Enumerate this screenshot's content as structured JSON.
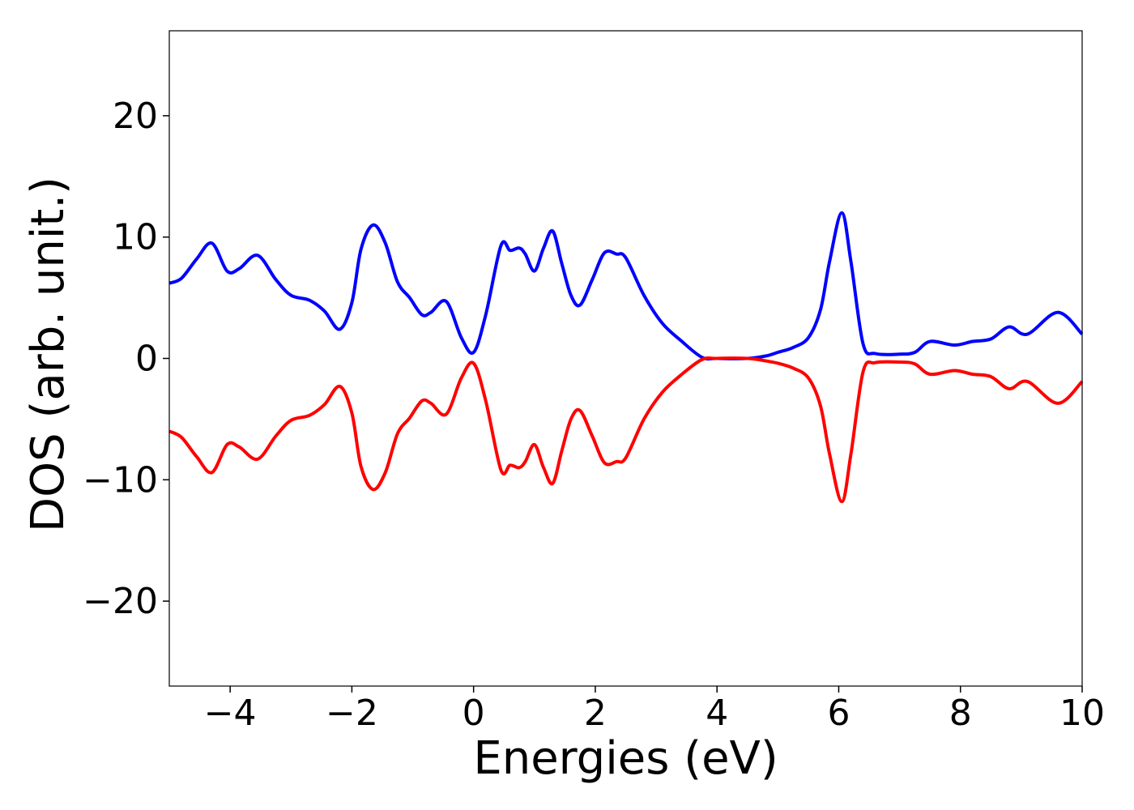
{
  "chart_data": {
    "type": "line",
    "title": "",
    "xlabel": "Energies (eV)",
    "ylabel": "DOS (arb. unit.)",
    "xlim": [
      -5,
      10
    ],
    "ylim": [
      -27,
      27
    ],
    "xticks": [
      -4,
      -2,
      0,
      2,
      4,
      6,
      8,
      10
    ],
    "yticks": [
      -20,
      -10,
      0,
      10,
      20
    ],
    "xtick_labels": [
      "−4",
      "−2",
      "0",
      "2",
      "4",
      "6",
      "8",
      "10"
    ],
    "ytick_labels": [
      "−20",
      "−10",
      "0",
      "10",
      "20"
    ],
    "grid": false,
    "legend": "none",
    "series": [
      {
        "color": "#0000ff",
        "x": [
          -5.0,
          -4.8,
          -4.55,
          -4.3,
          -4.05,
          -3.85,
          -3.55,
          -3.25,
          -3.0,
          -2.7,
          -2.45,
          -2.2,
          -2.0,
          -1.85,
          -1.65,
          -1.45,
          -1.25,
          -1.05,
          -0.85,
          -0.7,
          -0.45,
          -0.2,
          0.0,
          0.2,
          0.45,
          0.6,
          0.75,
          0.85,
          1.0,
          1.15,
          1.3,
          1.45,
          1.6,
          1.75,
          1.95,
          2.15,
          2.35,
          2.5,
          2.8,
          3.1,
          3.4,
          3.75,
          4.0,
          4.5,
          4.8,
          5.0,
          5.25,
          5.5,
          5.7,
          5.85,
          6.05,
          6.2,
          6.4,
          6.6,
          7.0,
          7.25,
          7.5,
          7.9,
          8.2,
          8.5,
          8.8,
          9.1,
          9.6,
          10.0
        ],
        "y": [
          6.2,
          6.6,
          8.2,
          9.5,
          7.2,
          7.4,
          8.5,
          6.5,
          5.2,
          4.8,
          3.9,
          2.4,
          4.6,
          9.0,
          11.0,
          9.5,
          6.3,
          5.0,
          3.6,
          3.8,
          4.7,
          1.7,
          0.5,
          3.6,
          9.3,
          8.9,
          9.1,
          8.6,
          7.2,
          9.1,
          10.5,
          7.8,
          5.2,
          4.4,
          6.5,
          8.7,
          8.6,
          8.3,
          5.2,
          2.9,
          1.5,
          0.1,
          0.0,
          0.0,
          0.2,
          0.5,
          0.9,
          1.7,
          4.0,
          8.0,
          12.0,
          8.0,
          1.2,
          0.4,
          0.35,
          0.5,
          1.4,
          1.1,
          1.4,
          1.6,
          2.6,
          2.0,
          3.8,
          2.0
        ]
      },
      {
        "color": "#ff0000",
        "x": [
          -5.0,
          -4.8,
          -4.55,
          -4.3,
          -4.05,
          -3.85,
          -3.55,
          -3.25,
          -3.0,
          -2.7,
          -2.45,
          -2.2,
          -2.0,
          -1.85,
          -1.65,
          -1.45,
          -1.25,
          -1.05,
          -0.85,
          -0.7,
          -0.45,
          -0.2,
          0.0,
          0.2,
          0.45,
          0.6,
          0.75,
          0.85,
          1.0,
          1.15,
          1.3,
          1.45,
          1.6,
          1.75,
          1.95,
          2.15,
          2.35,
          2.5,
          2.8,
          3.1,
          3.4,
          3.75,
          4.0,
          4.5,
          4.8,
          5.0,
          5.25,
          5.5,
          5.7,
          5.85,
          6.05,
          6.2,
          6.4,
          6.6,
          7.0,
          7.25,
          7.5,
          7.9,
          8.2,
          8.5,
          8.8,
          9.1,
          9.6,
          10.0
        ],
        "y": [
          -6.0,
          -6.5,
          -8.1,
          -9.4,
          -7.1,
          -7.3,
          -8.3,
          -6.4,
          -5.1,
          -4.7,
          -3.8,
          -2.3,
          -4.5,
          -8.9,
          -10.8,
          -9.4,
          -6.2,
          -4.9,
          -3.5,
          -3.7,
          -4.6,
          -1.6,
          -0.4,
          -3.5,
          -9.2,
          -8.8,
          -9.0,
          -8.5,
          -7.1,
          -9.0,
          -10.3,
          -7.6,
          -5.0,
          -4.3,
          -6.4,
          -8.6,
          -8.5,
          -8.2,
          -5.0,
          -2.8,
          -1.4,
          -0.1,
          0.0,
          0.0,
          -0.2,
          -0.4,
          -0.8,
          -1.6,
          -3.9,
          -7.9,
          -11.8,
          -7.9,
          -1.1,
          -0.35,
          -0.3,
          -0.45,
          -1.3,
          -1.0,
          -1.3,
          -1.5,
          -2.5,
          -1.9,
          -3.7,
          -1.9
        ]
      }
    ]
  }
}
